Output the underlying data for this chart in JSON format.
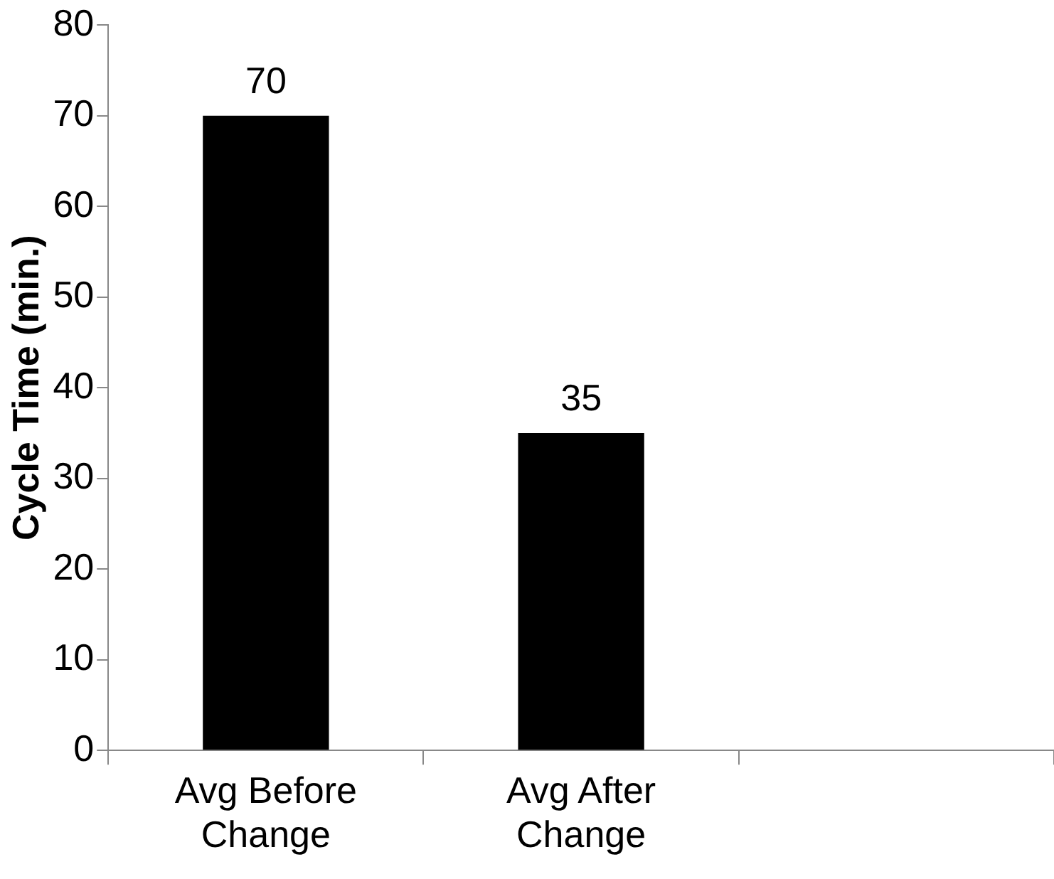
{
  "chart_data": {
    "type": "bar",
    "ylabel": "Cycle Time (min.)",
    "categories": [
      "Avg Before Change",
      "Avg After Change",
      null
    ],
    "values": [
      70,
      35,
      null
    ],
    "color": "#000000",
    "ylim": [
      0,
      80
    ],
    "yticks": [
      0,
      10,
      20,
      30,
      40,
      50,
      60,
      70,
      80
    ],
    "grid": false,
    "legend": false,
    "data_labels": true
  }
}
